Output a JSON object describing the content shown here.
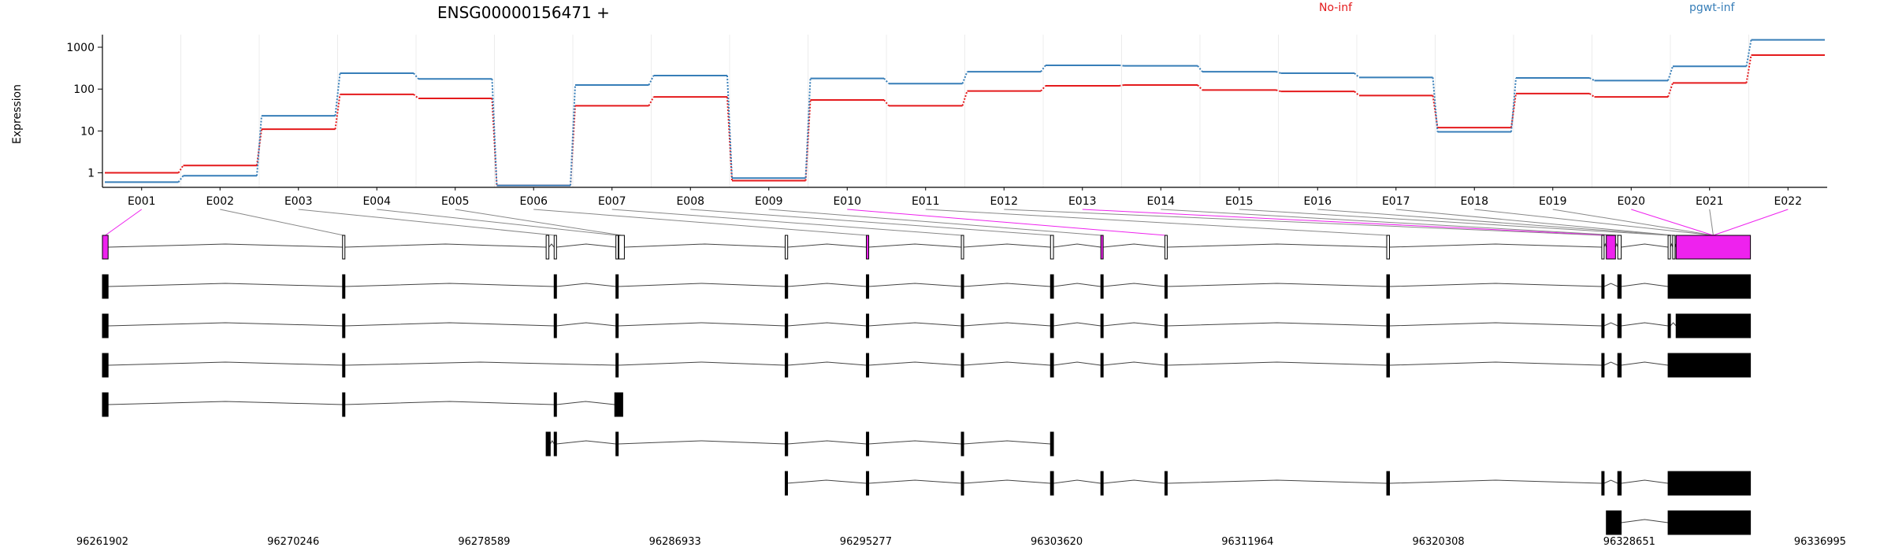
{
  "chart_data": {
    "type": "line",
    "title": "ENSG00000156471 +",
    "ylabel": "Expression",
    "xlabel": "",
    "y_scale": "log",
    "yticks": [
      1,
      10,
      100,
      1000
    ],
    "ylim": [
      0.45,
      2000
    ],
    "grid": "vertical lines at exon bin boundaries",
    "legend_placement": "top-right",
    "categories": [
      "E001",
      "E002",
      "E003",
      "E004",
      "E005",
      "E006",
      "E007",
      "E008",
      "E009",
      "E010",
      "E011",
      "E012",
      "E013",
      "E014",
      "E015",
      "E016",
      "E017",
      "E018",
      "E019",
      "E020",
      "E021",
      "E022"
    ],
    "series": [
      {
        "name": "No-inf",
        "color": "#e41a1c",
        "values": [
          1.0,
          1.5,
          11,
          75,
          60,
          0.5,
          40,
          65,
          0.65,
          55,
          40,
          90,
          120,
          125,
          95,
          88,
          70,
          12,
          78,
          65,
          140,
          650
        ]
      },
      {
        "name": "pgwt-inf",
        "color": "#377eb8",
        "values": [
          0.6,
          0.85,
          23,
          240,
          175,
          0.5,
          125,
          210,
          0.75,
          180,
          135,
          260,
          370,
          360,
          260,
          240,
          190,
          9.5,
          185,
          160,
          350,
          1500
        ]
      }
    ]
  },
  "gene_model": {
    "highlight_color": "#ee22ee",
    "start": 96261902,
    "end": 96336995,
    "coordinate_labels": [
      "96261902",
      "96270246",
      "96278589",
      "96286933",
      "96295277",
      "96303620",
      "96311964",
      "96320308",
      "96328651",
      "96336995"
    ],
    "highlighted_exons": [
      "E001",
      "E010",
      "E013",
      "E020",
      "E022"
    ],
    "transcript_count": 8
  }
}
